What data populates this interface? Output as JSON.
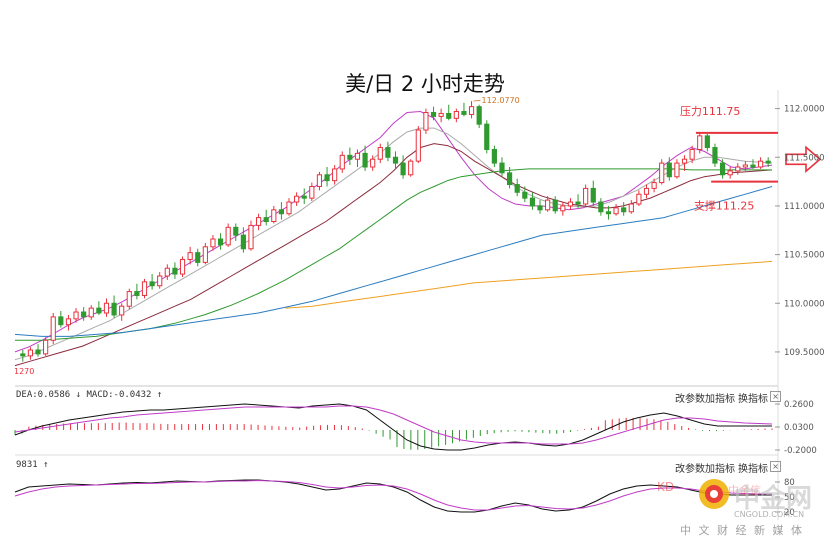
{
  "title": "美/日 2 小时走势",
  "chart_data": {
    "type": "candlestick",
    "title": "美/日 2 小时走势",
    "y_ticks": [
      "112.0000",
      "111.5000",
      "111.0000",
      "110.5000",
      "110.0000",
      "109.5000"
    ],
    "ylim": [
      109.15,
      112.15
    ],
    "left_label": "1270",
    "peak_label": "112.0770",
    "annotations": {
      "resistance": {
        "label": "压力111.75",
        "value": 111.75,
        "color": "#e8323c"
      },
      "support": {
        "label": "支撑111.25",
        "value": 111.25,
        "color": "#e8323c"
      }
    },
    "candles": [
      [
        109.48,
        109.52,
        109.4,
        109.46
      ],
      [
        109.46,
        109.55,
        109.42,
        109.52
      ],
      [
        109.52,
        109.58,
        109.45,
        109.48
      ],
      [
        109.48,
        109.65,
        109.46,
        109.62
      ],
      [
        109.62,
        109.9,
        109.58,
        109.86
      ],
      [
        109.86,
        109.92,
        109.75,
        109.78
      ],
      [
        109.78,
        109.88,
        109.72,
        109.84
      ],
      [
        109.84,
        109.95,
        109.8,
        109.91
      ],
      [
        109.91,
        109.96,
        109.82,
        109.86
      ],
      [
        109.86,
        109.98,
        109.83,
        109.95
      ],
      [
        109.95,
        110.02,
        109.88,
        109.9
      ],
      [
        109.9,
        110.05,
        109.86,
        110.0
      ],
      [
        110.0,
        110.08,
        109.85,
        109.88
      ],
      [
        109.88,
        110.0,
        109.82,
        109.97
      ],
      [
        109.97,
        110.15,
        109.94,
        110.12
      ],
      [
        110.12,
        110.2,
        110.04,
        110.08
      ],
      [
        110.08,
        110.25,
        110.05,
        110.22
      ],
      [
        110.22,
        110.3,
        110.14,
        110.18
      ],
      [
        110.18,
        110.32,
        110.15,
        110.28
      ],
      [
        110.28,
        110.4,
        110.24,
        110.36
      ],
      [
        110.36,
        110.42,
        110.25,
        110.3
      ],
      [
        110.3,
        110.48,
        110.27,
        110.45
      ],
      [
        110.45,
        110.58,
        110.4,
        110.52
      ],
      [
        110.52,
        110.56,
        110.38,
        110.42
      ],
      [
        110.42,
        110.62,
        110.4,
        110.58
      ],
      [
        110.58,
        110.7,
        110.54,
        110.66
      ],
      [
        110.66,
        110.72,
        110.55,
        110.6
      ],
      [
        110.6,
        110.82,
        110.58,
        110.78
      ],
      [
        110.78,
        110.82,
        110.64,
        110.7
      ],
      [
        110.7,
        110.78,
        110.52,
        110.56
      ],
      [
        110.56,
        110.85,
        110.54,
        110.8
      ],
      [
        110.8,
        110.92,
        110.75,
        110.88
      ],
      [
        110.88,
        110.96,
        110.8,
        110.84
      ],
      [
        110.84,
        111.0,
        110.82,
        110.96
      ],
      [
        110.96,
        111.04,
        110.86,
        110.92
      ],
      [
        110.92,
        111.08,
        110.9,
        111.04
      ],
      [
        111.04,
        111.14,
        111.0,
        111.1
      ],
      [
        111.1,
        111.18,
        111.02,
        111.08
      ],
      [
        111.08,
        111.24,
        111.05,
        111.2
      ],
      [
        111.2,
        111.35,
        111.16,
        111.32
      ],
      [
        111.32,
        111.4,
        111.2,
        111.26
      ],
      [
        111.26,
        111.42,
        111.22,
        111.38
      ],
      [
        111.38,
        111.56,
        111.34,
        111.52
      ],
      [
        111.52,
        111.6,
        111.42,
        111.48
      ],
      [
        111.48,
        111.58,
        111.4,
        111.54
      ],
      [
        111.54,
        111.62,
        111.36,
        111.4
      ],
      [
        111.4,
        111.52,
        111.36,
        111.48
      ],
      [
        111.48,
        111.64,
        111.44,
        111.6
      ],
      [
        111.6,
        111.66,
        111.46,
        111.5
      ],
      [
        111.5,
        111.56,
        111.38,
        111.44
      ],
      [
        111.44,
        111.52,
        111.28,
        111.32
      ],
      [
        111.32,
        111.48,
        111.3,
        111.46
      ],
      [
        111.46,
        111.82,
        111.44,
        111.78
      ],
      [
        111.78,
        112.0,
        111.74,
        111.96
      ],
      [
        111.96,
        112.02,
        111.88,
        111.92
      ],
      [
        111.92,
        112.0,
        111.86,
        111.95
      ],
      [
        111.95,
        112.04,
        111.88,
        111.9
      ],
      [
        111.9,
        112.0,
        111.86,
        111.97
      ],
      [
        111.97,
        112.06,
        111.92,
        111.94
      ],
      [
        111.94,
        112.077,
        111.9,
        112.02
      ],
      [
        112.02,
        112.04,
        111.8,
        111.84
      ],
      [
        111.84,
        111.88,
        111.54,
        111.58
      ],
      [
        111.58,
        111.62,
        111.4,
        111.44
      ],
      [
        111.44,
        111.5,
        111.3,
        111.34
      ],
      [
        111.34,
        111.4,
        111.18,
        111.22
      ],
      [
        111.22,
        111.28,
        111.1,
        111.14
      ],
      [
        111.14,
        111.2,
        111.04,
        111.08
      ],
      [
        111.08,
        111.14,
        110.96,
        111.0
      ],
      [
        111.0,
        111.06,
        110.92,
        110.96
      ],
      [
        110.96,
        111.1,
        110.94,
        111.06
      ],
      [
        111.06,
        111.1,
        110.92,
        110.95
      ],
      [
        110.95,
        111.04,
        110.9,
        111.0
      ],
      [
        111.0,
        111.08,
        110.96,
        111.04
      ],
      [
        111.04,
        111.12,
        110.98,
        111.02
      ],
      [
        111.02,
        111.22,
        111.0,
        111.18
      ],
      [
        111.18,
        111.26,
        111.0,
        111.04
      ],
      [
        111.04,
        111.08,
        110.9,
        110.94
      ],
      [
        110.94,
        111.0,
        110.86,
        110.92
      ],
      [
        110.92,
        111.02,
        110.9,
        110.98
      ],
      [
        110.98,
        111.04,
        110.9,
        110.94
      ],
      [
        110.94,
        111.06,
        110.92,
        111.02
      ],
      [
        111.02,
        111.16,
        111.0,
        111.12
      ],
      [
        111.12,
        111.22,
        111.08,
        111.18
      ],
      [
        111.18,
        111.28,
        111.14,
        111.24
      ],
      [
        111.24,
        111.48,
        111.22,
        111.44
      ],
      [
        111.44,
        111.5,
        111.26,
        111.3
      ],
      [
        111.3,
        111.48,
        111.28,
        111.44
      ],
      [
        111.44,
        111.52,
        111.36,
        111.48
      ],
      [
        111.48,
        111.62,
        111.44,
        111.58
      ],
      [
        111.58,
        111.76,
        111.54,
        111.72
      ],
      [
        111.72,
        111.74,
        111.56,
        111.6
      ],
      [
        111.6,
        111.64,
        111.4,
        111.44
      ],
      [
        111.44,
        111.48,
        111.28,
        111.32
      ],
      [
        111.32,
        111.4,
        111.28,
        111.36
      ],
      [
        111.36,
        111.44,
        111.32,
        111.4
      ],
      [
        111.4,
        111.46,
        111.36,
        111.42
      ],
      [
        111.42,
        111.48,
        111.38,
        111.4
      ],
      [
        111.4,
        111.5,
        111.38,
        111.46
      ],
      [
        111.46,
        111.5,
        111.4,
        111.44
      ]
    ],
    "ma_series": [
      {
        "color": "#c03cc8",
        "values": [
          109.5,
          109.55,
          109.62,
          109.7,
          109.78,
          109.85,
          109.9,
          109.95,
          110.02,
          110.1,
          110.18,
          110.26,
          110.34,
          110.42,
          110.5,
          110.58,
          110.66,
          110.74,
          110.82,
          110.9,
          110.98,
          111.08,
          111.18,
          111.28,
          111.4,
          111.5,
          111.6,
          111.7,
          111.85,
          111.96,
          111.97,
          111.9,
          111.7,
          111.5,
          111.32,
          111.18,
          111.08,
          111.02,
          111.0,
          111.0,
          110.98,
          110.96,
          110.98,
          111.02,
          111.06,
          111.1,
          111.2,
          111.3,
          111.42,
          111.52,
          111.6,
          111.56,
          111.48,
          111.4,
          111.38,
          111.4,
          111.42
        ]
      },
      {
        "color": "#aaaaaa",
        "values": [
          109.42,
          109.46,
          109.52,
          109.58,
          109.64,
          109.7,
          109.76,
          109.82,
          109.9,
          109.98,
          110.06,
          110.14,
          110.22,
          110.3,
          110.38,
          110.46,
          110.54,
          110.62,
          110.7,
          110.78,
          110.86,
          110.94,
          111.04,
          111.14,
          111.24,
          111.34,
          111.44,
          111.54,
          111.66,
          111.76,
          111.8,
          111.8,
          111.74,
          111.64,
          111.52,
          111.4,
          111.3,
          111.2,
          111.12,
          111.06,
          111.02,
          111.0,
          110.99,
          111.0,
          111.04,
          111.1,
          111.16,
          111.24,
          111.32,
          111.4,
          111.46,
          111.5,
          111.5,
          111.48,
          111.46,
          111.45,
          111.44
        ]
      },
      {
        "color": "#8b2a3c",
        "values": [
          109.36,
          109.4,
          109.44,
          109.48,
          109.52,
          109.56,
          109.62,
          109.68,
          109.74,
          109.8,
          109.86,
          109.92,
          109.98,
          110.04,
          110.12,
          110.2,
          110.28,
          110.36,
          110.44,
          110.52,
          110.6,
          110.68,
          110.76,
          110.84,
          110.94,
          111.04,
          111.14,
          111.24,
          111.36,
          111.5,
          111.6,
          111.64,
          111.62,
          111.56,
          111.46,
          111.38,
          111.3,
          111.22,
          111.16,
          111.1,
          111.06,
          111.02,
          111.0,
          110.98,
          110.98,
          111.0,
          111.04,
          111.08,
          111.14,
          111.2,
          111.26,
          111.3,
          111.32,
          111.34,
          111.35,
          111.36,
          111.37
        ]
      },
      {
        "color": "#2f9a2f",
        "values": [
          109.62,
          109.62,
          109.62,
          109.63,
          109.64,
          109.65,
          109.66,
          109.68,
          109.7,
          109.72,
          109.74,
          109.77,
          109.8,
          109.84,
          109.88,
          109.93,
          109.98,
          110.04,
          110.1,
          110.17,
          110.24,
          110.32,
          110.4,
          110.48,
          110.56,
          110.66,
          110.76,
          110.86,
          110.96,
          111.06,
          111.14,
          111.2,
          111.26,
          111.3,
          111.32,
          111.34,
          111.36,
          111.37,
          111.38,
          111.38,
          111.38,
          111.38,
          111.38,
          111.38,
          111.38,
          111.38,
          111.38,
          111.38,
          111.38,
          111.38,
          111.37,
          111.37,
          111.37,
          111.37,
          111.37,
          111.37,
          111.37
        ]
      },
      {
        "color": "#2b7cc0",
        "values": [
          109.68,
          109.67,
          109.66,
          109.66,
          109.66,
          109.67,
          109.68,
          109.69,
          109.7,
          109.72,
          109.74,
          109.76,
          109.78,
          109.8,
          109.82,
          109.84,
          109.86,
          109.88,
          109.9,
          109.93,
          109.96,
          109.99,
          110.02,
          110.06,
          110.1,
          110.14,
          110.18,
          110.22,
          110.26,
          110.3,
          110.34,
          110.38,
          110.42,
          110.46,
          110.5,
          110.54,
          110.58,
          110.62,
          110.66,
          110.7,
          110.72,
          110.74,
          110.76,
          110.78,
          110.8,
          110.82,
          110.84,
          110.86,
          110.88,
          110.92,
          110.96,
          111.0,
          111.04,
          111.08,
          111.12,
          111.16,
          111.2
        ]
      },
      {
        "color": "#f0a020",
        "values": [
          null,
          null,
          null,
          null,
          null,
          null,
          null,
          null,
          null,
          null,
          null,
          null,
          null,
          null,
          null,
          null,
          null,
          null,
          null,
          null,
          109.95,
          109.96,
          109.97,
          109.99,
          110.01,
          110.03,
          110.05,
          110.07,
          110.09,
          110.11,
          110.13,
          110.15,
          110.17,
          110.19,
          110.21,
          110.22,
          110.23,
          110.24,
          110.25,
          110.26,
          110.27,
          110.28,
          110.29,
          110.3,
          110.31,
          110.32,
          110.33,
          110.34,
          110.35,
          110.36,
          110.37,
          110.38,
          110.39,
          110.4,
          110.41,
          110.42,
          110.43
        ]
      }
    ],
    "macd": {
      "label": "DEA:0.0586 ↓ MACD:-0.0432 ↑",
      "y_ticks": [
        "0.2600",
        "0.0300",
        "-0.2000"
      ],
      "ylim": [
        -0.25,
        0.3
      ],
      "dif": [
        -0.05,
        0.0,
        0.04,
        0.07,
        0.1,
        0.12,
        0.14,
        0.16,
        0.18,
        0.19,
        0.2,
        0.2,
        0.21,
        0.22,
        0.23,
        0.24,
        0.25,
        0.26,
        0.25,
        0.24,
        0.23,
        0.22,
        0.24,
        0.25,
        0.26,
        0.24,
        0.2,
        0.1,
        0.0,
        -0.1,
        -0.16,
        -0.19,
        -0.2,
        -0.2,
        -0.18,
        -0.15,
        -0.13,
        -0.12,
        -0.13,
        -0.15,
        -0.16,
        -0.14,
        -0.1,
        -0.04,
        0.02,
        0.08,
        0.12,
        0.15,
        0.17,
        0.14,
        0.1,
        0.06,
        0.04,
        0.04,
        0.04,
        0.04,
        0.04
      ],
      "dea": [
        -0.02,
        0.0,
        0.02,
        0.04,
        0.06,
        0.08,
        0.1,
        0.12,
        0.13,
        0.15,
        0.16,
        0.17,
        0.18,
        0.19,
        0.2,
        0.21,
        0.22,
        0.23,
        0.23,
        0.23,
        0.23,
        0.23,
        0.23,
        0.23,
        0.24,
        0.24,
        0.23,
        0.2,
        0.16,
        0.1,
        0.04,
        -0.02,
        -0.06,
        -0.1,
        -0.12,
        -0.13,
        -0.13,
        -0.13,
        -0.13,
        -0.14,
        -0.14,
        -0.14,
        -0.13,
        -0.1,
        -0.06,
        -0.02,
        0.02,
        0.06,
        0.1,
        0.12,
        0.12,
        0.11,
        0.09,
        0.08,
        0.07,
        0.065,
        0.06
      ],
      "bar_up_color": "#e8323c",
      "bar_down_color": "#2f9a2f"
    },
    "kdj": {
      "label": "9831 ↑",
      "k": [
        60,
        70,
        72,
        74,
        76,
        75,
        74,
        76,
        78,
        79,
        78,
        80,
        82,
        81,
        80,
        82,
        83,
        84,
        84,
        82,
        80,
        76,
        70,
        64,
        66,
        72,
        78,
        76,
        70,
        60,
        44,
        30,
        22,
        20,
        20,
        24,
        32,
        38,
        34,
        26,
        22,
        24,
        30,
        42,
        56,
        66,
        72,
        74,
        72,
        70,
        64,
        58,
        56,
        54,
        54,
        54,
        54
      ],
      "d": [
        52,
        60,
        66,
        70,
        72,
        73,
        74,
        75,
        76,
        77,
        77,
        78,
        79,
        80,
        80,
        81,
        82,
        82,
        83,
        82,
        81,
        79,
        75,
        70,
        68,
        70,
        73,
        74,
        72,
        66,
        56,
        44,
        34,
        28,
        24,
        24,
        28,
        32,
        33,
        30,
        27,
        26,
        28,
        34,
        42,
        52,
        60,
        66,
        68,
        68,
        66,
        62,
        60,
        58,
        57,
        56,
        56
      ],
      "y_ticks": [
        "80",
        "50",
        "20"
      ]
    },
    "toolbar": {
      "params": "改参数",
      "add": "加指标",
      "switch": "换指标",
      "close": "×"
    }
  },
  "watermark": {
    "brand": "中金网",
    "site": "CNGOLD.COM.CN",
    "sub": "中 文 财 经 新 媒 体",
    "partial": "KD",
    "partial2": "中金信"
  }
}
